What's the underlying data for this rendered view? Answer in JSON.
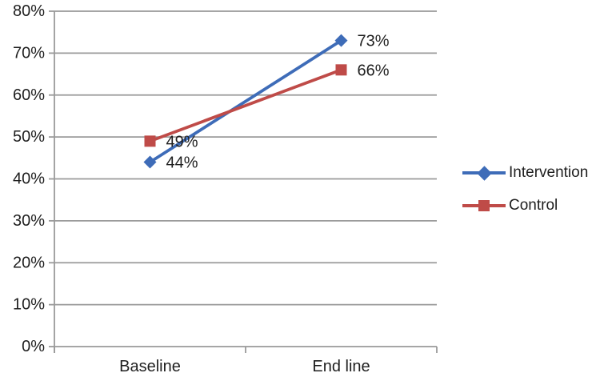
{
  "chart_data": {
    "type": "line",
    "categories": [
      "Baseline",
      "End line"
    ],
    "series": [
      {
        "name": "Intervention",
        "values": [
          44,
          73
        ],
        "point_labels": [
          "44%",
          "73%"
        ],
        "color": "#3E6CB8",
        "marker": "diamond"
      },
      {
        "name": "Control",
        "values": [
          49,
          66
        ],
        "point_labels": [
          "49%",
          "66%"
        ],
        "color": "#BF4B48",
        "marker": "square"
      }
    ],
    "title": "",
    "xlabel": "",
    "ylabel": "",
    "ylim": [
      0,
      80
    ],
    "ytick_step": 10,
    "ytick_labels": [
      "0%",
      "10%",
      "20%",
      "30%",
      "40%",
      "50%",
      "60%",
      "70%",
      "80%"
    ],
    "grid": true,
    "legend_position": "right"
  },
  "colors": {
    "gridline": "#9A9A9A",
    "axis": "#9A9A9A",
    "text": "#1F1F1F",
    "background": "#FFFFFF"
  }
}
